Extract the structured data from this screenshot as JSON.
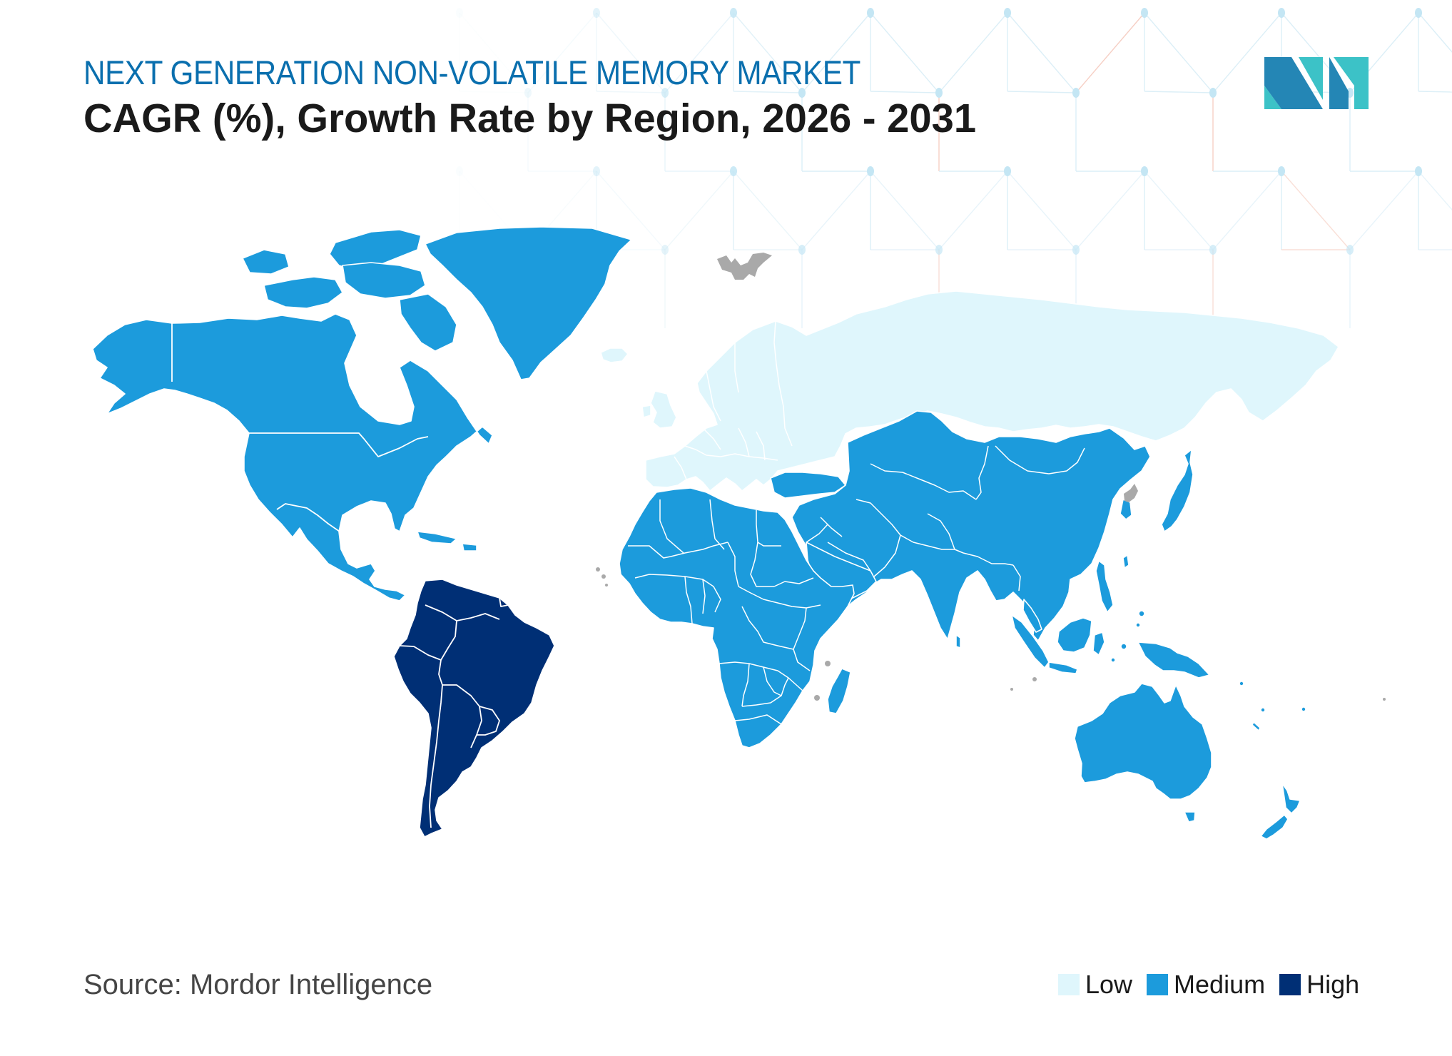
{
  "header": {
    "title": "NEXT GENERATION NON-VOLATILE MEMORY MARKET",
    "subtitle": "CAGR (%), Growth Rate by Region, 2026 - 2031",
    "title_color": "#0A6FAE",
    "subtitle_color": "#1A1A1A"
  },
  "logo": {
    "name": "mordor-intelligence-logo",
    "colors": {
      "dark": "#2486B5",
      "light": "#3CC2C7"
    }
  },
  "footer": {
    "source": "Source: Mordor Intelligence",
    "source_color": "#454545"
  },
  "legend": {
    "items": [
      {
        "label": "Low",
        "color": "#DFF6FC"
      },
      {
        "label": "Medium",
        "color": "#1C9BDC"
      },
      {
        "label": "High",
        "color": "#002F75"
      }
    ],
    "label_color": "#1A1A1A"
  },
  "colors": {
    "no_data": "#A9A9A9",
    "border": "#FFFFFF",
    "pattern_line": "#DCEFF7",
    "pattern_line_accent": "#F6CFC4",
    "pattern_dot": "#C4E6F4"
  },
  "chart_data": {
    "type": "choropleth",
    "title": "NEXT GENERATION NON-VOLATILE MEMORY MARKET",
    "subtitle": "CAGR (%), Growth Rate by Region, 2026 - 2031",
    "legend_position": "bottom-right",
    "categories": [
      "Low",
      "Medium",
      "High"
    ],
    "regions": [
      {
        "region": "North America",
        "category": "Medium"
      },
      {
        "region": "South America",
        "category": "High"
      },
      {
        "region": "Europe",
        "category": "Low"
      },
      {
        "region": "Russia",
        "category": "Low"
      },
      {
        "region": "Asia-Pacific",
        "category": "Medium"
      },
      {
        "region": "Middle East and Africa",
        "category": "Medium"
      },
      {
        "region": "Australia and New Zealand",
        "category": "Medium"
      }
    ],
    "no_data_regions": [
      "Svalbard",
      "North Korea",
      "small island territories"
    ],
    "source": "Source: Mordor Intelligence"
  }
}
